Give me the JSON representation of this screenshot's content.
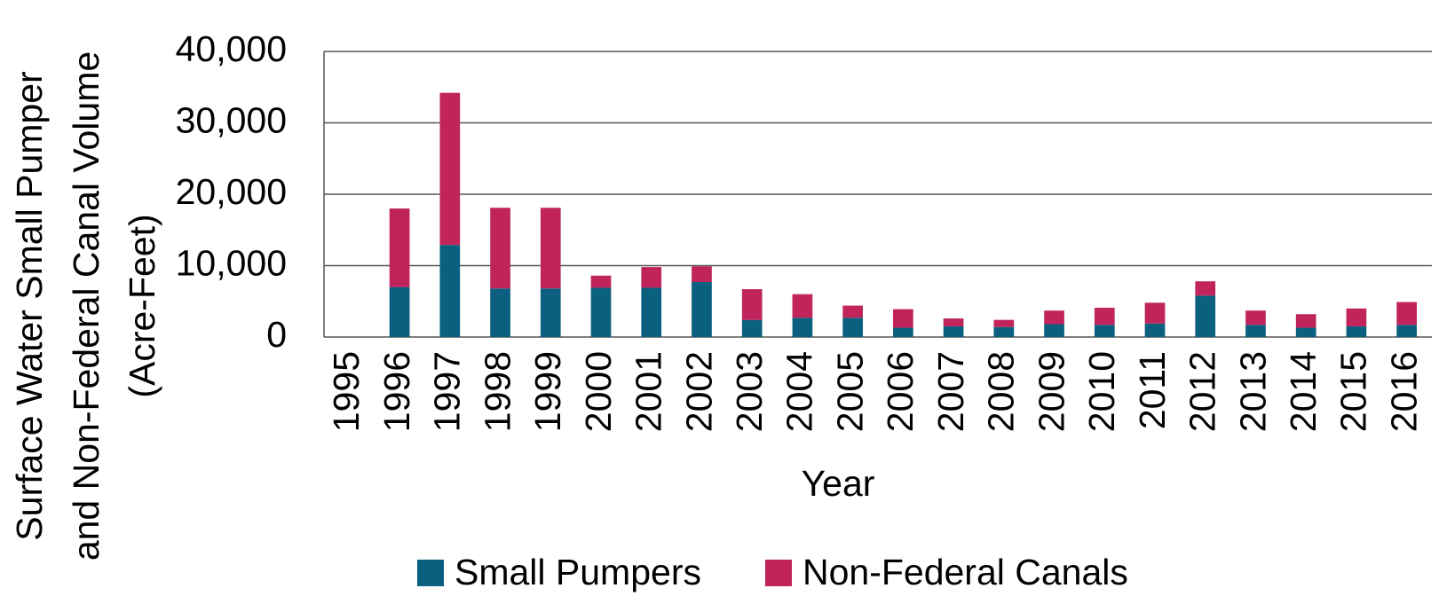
{
  "chart_data": {
    "type": "stacked_bar",
    "y_label": [
      "Surface Water Small Pumper",
      "and Non-Federal Canal Volume",
      "(Acre-Feet)"
    ],
    "x_label": "Year",
    "categories": [
      "1995",
      "1996",
      "1997",
      "1998",
      "1999",
      "2000",
      "2001",
      "2002",
      "2003",
      "2004",
      "2005",
      "2006",
      "2007",
      "2008",
      "2009",
      "2010",
      "2011",
      "2012",
      "2013",
      "2014",
      "2015",
      "2016"
    ],
    "series": [
      {
        "name": "Small Pumpers",
        "color": "#0b5f7f",
        "values": [
          null,
          7000,
          12900,
          6800,
          6800,
          6900,
          6900,
          7700,
          2400,
          2700,
          2700,
          1300,
          1500,
          1400,
          1800,
          1700,
          1900,
          5800,
          1700,
          1300,
          1500,
          1700
        ]
      },
      {
        "name": "Non-Federal Canals",
        "color": "#c0245a",
        "values": [
          null,
          11000,
          21300,
          11300,
          11300,
          1700,
          2900,
          2200,
          4300,
          3300,
          1700,
          2600,
          1100,
          1000,
          1900,
          2400,
          2900,
          2000,
          2000,
          1900,
          2500,
          3200
        ]
      }
    ],
    "ylim": [
      0,
      40000
    ],
    "yticks": [
      0,
      {
        "value": 10000,
        "label": "10,000"
      },
      {
        "value": 20000,
        "label": "20,000"
      },
      {
        "value": 30000,
        "label": "30,000"
      },
      {
        "value": 40000,
        "label": "40,000"
      }
    ],
    "grid": true,
    "legend": "bottom"
  }
}
